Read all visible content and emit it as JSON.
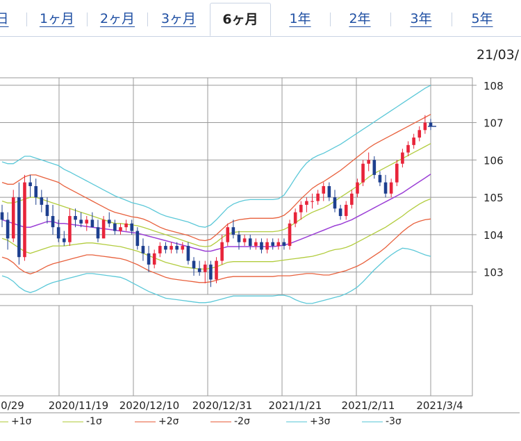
{
  "tabs": [
    {
      "label": "日",
      "active": false
    },
    {
      "label": "1ヶ月",
      "active": false
    },
    {
      "label": "2ヶ月",
      "active": false
    },
    {
      "label": "3ヶ月",
      "active": false
    },
    {
      "label": "6ヶ月",
      "active": true
    },
    {
      "label": "1年",
      "active": false
    },
    {
      "label": "2年",
      "active": false
    },
    {
      "label": "3年",
      "active": false
    },
    {
      "label": "5年",
      "active": false
    }
  ],
  "date_stamp": "21/03/",
  "legend": [
    {
      "label": "+1σ",
      "color": "#b2cc3e"
    },
    {
      "label": "-1σ",
      "color": "#b2cc3e"
    },
    {
      "label": "+2σ",
      "color": "#e8603c"
    },
    {
      "label": "-2σ",
      "color": "#e8603c"
    },
    {
      "label": "+3σ",
      "color": "#5bc8d8"
    },
    {
      "label": "-3σ",
      "color": "#5bc8d8"
    }
  ],
  "colors": {
    "up": "#e8243a",
    "down": "#1d3f8f",
    "ma": "#9b3fd6",
    "grid": "#999999"
  },
  "chart_data": {
    "type": "candlestick",
    "x_tick_labels": [
      "0/29",
      "2020/11/19",
      "2020/12/10",
      "2020/12/31",
      "2021/1/21",
      "2021/2/11",
      "2021/3/4"
    ],
    "y_ticks": [
      103,
      104,
      105,
      106,
      107,
      108
    ],
    "ylim": [
      102.4,
      108.2
    ],
    "ohlc": [
      [
        104.6,
        104.8,
        104.2,
        104.4
      ],
      [
        104.4,
        104.6,
        103.6,
        103.9
      ],
      [
        103.9,
        105.2,
        103.8,
        105.0
      ],
      [
        105.0,
        105.4,
        103.2,
        103.4
      ],
      [
        103.4,
        105.6,
        103.3,
        105.4
      ],
      [
        105.4,
        105.6,
        105.0,
        105.3
      ],
      [
        105.3,
        105.5,
        104.8,
        105.0
      ],
      [
        105.0,
        105.2,
        104.6,
        104.8
      ],
      [
        104.8,
        105.0,
        104.3,
        104.5
      ],
      [
        104.5,
        104.8,
        104.0,
        104.2
      ],
      [
        104.2,
        104.4,
        103.8,
        103.9
      ],
      [
        103.9,
        104.1,
        103.7,
        103.8
      ],
      [
        103.8,
        104.7,
        103.7,
        104.5
      ],
      [
        104.5,
        104.7,
        104.2,
        104.4
      ],
      [
        104.4,
        104.6,
        104.2,
        104.3
      ],
      [
        104.3,
        104.5,
        104.1,
        104.4
      ],
      [
        104.4,
        104.6,
        104.2,
        104.2
      ],
      [
        104.2,
        104.4,
        103.8,
        103.9
      ],
      [
        103.9,
        104.5,
        103.9,
        104.4
      ],
      [
        104.4,
        104.6,
        104.2,
        104.3
      ],
      [
        104.3,
        104.4,
        104.0,
        104.1
      ],
      [
        104.1,
        104.3,
        104.0,
        104.2
      ],
      [
        104.2,
        104.4,
        104.1,
        104.3
      ],
      [
        104.3,
        104.4,
        104.0,
        104.1
      ],
      [
        104.1,
        104.2,
        103.6,
        103.7
      ],
      [
        103.7,
        103.9,
        103.3,
        103.5
      ],
      [
        103.5,
        103.7,
        103.0,
        103.2
      ],
      [
        103.2,
        103.6,
        103.1,
        103.5
      ],
      [
        103.5,
        103.8,
        103.4,
        103.7
      ],
      [
        103.7,
        103.8,
        103.5,
        103.6
      ],
      [
        103.6,
        103.8,
        103.5,
        103.7
      ],
      [
        103.7,
        103.8,
        103.5,
        103.6
      ],
      [
        103.6,
        103.8,
        103.5,
        103.7
      ],
      [
        103.7,
        103.8,
        103.2,
        103.3
      ],
      [
        103.3,
        103.4,
        102.9,
        103.1
      ],
      [
        103.1,
        103.3,
        102.9,
        103.0
      ],
      [
        103.0,
        103.3,
        102.7,
        103.2
      ],
      [
        103.2,
        103.3,
        102.6,
        102.8
      ],
      [
        102.8,
        103.4,
        102.7,
        103.3
      ],
      [
        103.3,
        104.0,
        103.2,
        103.8
      ],
      [
        103.8,
        104.3,
        103.7,
        104.2
      ],
      [
        104.2,
        104.4,
        103.9,
        104.0
      ],
      [
        104.0,
        104.1,
        103.6,
        103.8
      ],
      [
        103.8,
        104.0,
        103.7,
        103.9
      ],
      [
        103.9,
        104.0,
        103.6,
        103.7
      ],
      [
        103.7,
        103.9,
        103.6,
        103.8
      ],
      [
        103.8,
        103.9,
        103.5,
        103.6
      ],
      [
        103.6,
        103.9,
        103.5,
        103.8
      ],
      [
        103.8,
        103.9,
        103.6,
        103.7
      ],
      [
        103.7,
        103.9,
        103.6,
        103.8
      ],
      [
        103.8,
        103.9,
        103.6,
        103.7
      ],
      [
        103.7,
        104.4,
        103.6,
        104.3
      ],
      [
        104.3,
        104.7,
        104.2,
        104.6
      ],
      [
        104.6,
        104.9,
        104.4,
        104.8
      ],
      [
        104.8,
        105.0,
        104.6,
        104.9
      ],
      [
        104.9,
        105.1,
        104.7,
        104.9
      ],
      [
        104.9,
        105.2,
        104.8,
        105.1
      ],
      [
        105.1,
        105.4,
        104.9,
        105.3
      ],
      [
        105.3,
        105.4,
        104.9,
        105.0
      ],
      [
        105.0,
        105.2,
        104.6,
        104.7
      ],
      [
        104.7,
        104.8,
        104.4,
        104.5
      ],
      [
        104.5,
        104.9,
        104.4,
        104.8
      ],
      [
        104.8,
        105.2,
        104.7,
        105.1
      ],
      [
        105.1,
        105.5,
        105.0,
        105.4
      ],
      [
        105.4,
        106.0,
        105.3,
        105.9
      ],
      [
        105.9,
        106.2,
        105.7,
        106.0
      ],
      [
        106.0,
        106.1,
        105.5,
        105.6
      ],
      [
        105.6,
        105.7,
        105.3,
        105.4
      ],
      [
        105.4,
        105.6,
        105.0,
        105.1
      ],
      [
        105.1,
        105.5,
        105.0,
        105.4
      ],
      [
        105.4,
        106.0,
        105.3,
        105.9
      ],
      [
        105.9,
        106.3,
        105.8,
        106.2
      ],
      [
        106.2,
        106.5,
        106.1,
        106.4
      ],
      [
        106.4,
        106.7,
        106.3,
        106.6
      ],
      [
        106.6,
        106.9,
        106.5,
        106.8
      ],
      [
        106.8,
        107.2,
        106.7,
        107.0
      ],
      [
        107.0,
        107.1,
        106.8,
        106.9
      ]
    ],
    "ma": [
      104.4,
      104.35,
      104.3,
      104.25,
      104.2,
      104.2,
      104.25,
      104.3,
      104.35,
      104.35,
      104.3,
      104.3,
      104.28,
      104.26,
      104.24,
      104.22,
      104.2,
      104.18,
      104.16,
      104.14,
      104.12,
      104.1,
      104.08,
      104.06,
      104.04,
      104.0,
      103.96,
      103.92,
      103.88,
      103.84,
      103.8,
      103.76,
      103.72,
      103.68,
      103.64,
      103.6,
      103.56,
      103.56,
      103.6,
      103.64,
      103.68,
      103.68,
      103.68,
      103.68,
      103.68,
      103.68,
      103.68,
      103.68,
      103.68,
      103.7,
      103.72,
      103.76,
      103.82,
      103.88,
      103.94,
      104.0,
      104.06,
      104.12,
      104.18,
      104.24,
      104.28,
      104.34,
      104.4,
      104.48,
      104.56,
      104.64,
      104.72,
      104.8,
      104.88,
      104.96,
      105.04,
      105.12,
      105.22,
      105.32,
      105.42,
      105.52,
      105.62
    ],
    "bands": {
      "plus1": [
        104.9,
        104.85,
        104.85,
        104.9,
        104.95,
        105.0,
        105.0,
        104.95,
        104.9,
        104.85,
        104.8,
        104.75,
        104.7,
        104.65,
        104.6,
        104.55,
        104.5,
        104.45,
        104.4,
        104.35,
        104.3,
        104.3,
        104.28,
        104.26,
        104.24,
        104.2,
        104.15,
        104.1,
        104.05,
        104.0,
        103.95,
        103.9,
        103.85,
        103.8,
        103.75,
        103.7,
        103.68,
        103.7,
        103.8,
        103.92,
        104.02,
        104.06,
        104.08,
        104.08,
        104.08,
        104.08,
        104.08,
        104.08,
        104.08,
        104.1,
        104.14,
        104.22,
        104.32,
        104.42,
        104.52,
        104.6,
        104.66,
        104.72,
        104.8,
        104.9,
        105.0,
        105.1,
        105.2,
        105.3,
        105.42,
        105.54,
        105.64,
        105.72,
        105.8,
        105.88,
        105.96,
        106.04,
        106.12,
        106.2,
        106.28,
        106.36,
        106.44
      ],
      "minus1": [
        103.9,
        103.85,
        103.75,
        103.65,
        103.55,
        103.5,
        103.55,
        103.6,
        103.65,
        103.7,
        103.7,
        103.7,
        103.72,
        103.74,
        103.76,
        103.78,
        103.78,
        103.76,
        103.74,
        103.72,
        103.7,
        103.68,
        103.64,
        103.6,
        103.56,
        103.5,
        103.44,
        103.38,
        103.32,
        103.26,
        103.22,
        103.18,
        103.14,
        103.12,
        103.1,
        103.08,
        103.08,
        103.1,
        103.14,
        103.2,
        103.26,
        103.28,
        103.28,
        103.28,
        103.28,
        103.28,
        103.28,
        103.28,
        103.28,
        103.3,
        103.32,
        103.34,
        103.36,
        103.38,
        103.4,
        103.42,
        103.46,
        103.5,
        103.56,
        103.6,
        103.62,
        103.66,
        103.72,
        103.8,
        103.88,
        103.96,
        104.04,
        104.12,
        104.2,
        104.3,
        104.4,
        104.5,
        104.62,
        104.72,
        104.82,
        104.9,
        104.96
      ],
      "plus2": [
        105.4,
        105.35,
        105.35,
        105.45,
        105.55,
        105.6,
        105.6,
        105.55,
        105.5,
        105.45,
        105.4,
        105.3,
        105.22,
        105.14,
        105.06,
        104.98,
        104.9,
        104.82,
        104.74,
        104.66,
        104.6,
        104.56,
        104.52,
        104.48,
        104.46,
        104.42,
        104.36,
        104.28,
        104.2,
        104.14,
        104.1,
        104.06,
        104.02,
        103.98,
        103.92,
        103.86,
        103.84,
        103.88,
        104.0,
        104.14,
        104.28,
        104.36,
        104.4,
        104.42,
        104.44,
        104.44,
        104.44,
        104.44,
        104.44,
        104.46,
        104.52,
        104.64,
        104.8,
        104.96,
        105.1,
        105.24,
        105.34,
        105.42,
        105.52,
        105.62,
        105.72,
        105.84,
        105.96,
        106.08,
        106.2,
        106.32,
        106.42,
        106.5,
        106.58,
        106.66,
        106.74,
        106.82,
        106.9,
        106.98,
        107.06,
        107.14,
        107.22
      ],
      "minus2": [
        103.4,
        103.35,
        103.25,
        103.1,
        103.0,
        102.95,
        103.0,
        103.08,
        103.16,
        103.22,
        103.26,
        103.3,
        103.34,
        103.38,
        103.42,
        103.46,
        103.46,
        103.44,
        103.42,
        103.4,
        103.38,
        103.36,
        103.32,
        103.26,
        103.2,
        103.12,
        103.04,
        102.98,
        102.92,
        102.86,
        102.82,
        102.8,
        102.78,
        102.76,
        102.74,
        102.72,
        102.72,
        102.74,
        102.78,
        102.82,
        102.86,
        102.88,
        102.88,
        102.88,
        102.88,
        102.88,
        102.88,
        102.88,
        102.88,
        102.9,
        102.9,
        102.9,
        102.92,
        102.94,
        102.96,
        102.96,
        102.94,
        102.92,
        102.92,
        102.96,
        103.0,
        103.04,
        103.1,
        103.16,
        103.24,
        103.34,
        103.44,
        103.54,
        103.66,
        103.8,
        103.94,
        104.08,
        104.2,
        104.3,
        104.36,
        104.4,
        104.42
      ],
      "plus3": [
        105.95,
        105.9,
        105.9,
        106.0,
        106.1,
        106.1,
        106.05,
        106.0,
        105.95,
        105.9,
        105.85,
        105.75,
        105.68,
        105.6,
        105.52,
        105.44,
        105.36,
        105.28,
        105.2,
        105.12,
        105.04,
        104.98,
        104.92,
        104.86,
        104.82,
        104.78,
        104.72,
        104.64,
        104.56,
        104.5,
        104.46,
        104.42,
        104.38,
        104.34,
        104.28,
        104.22,
        104.2,
        104.26,
        104.4,
        104.56,
        104.72,
        104.82,
        104.88,
        104.92,
        104.94,
        104.94,
        104.94,
        104.94,
        104.94,
        104.96,
        105.06,
        105.28,
        105.52,
        105.74,
        105.92,
        106.04,
        106.12,
        106.18,
        106.26,
        106.34,
        106.42,
        106.52,
        106.62,
        106.72,
        106.82,
        106.92,
        107.02,
        107.12,
        107.22,
        107.32,
        107.42,
        107.52,
        107.62,
        107.72,
        107.82,
        107.92,
        108.0
      ],
      "minus3": [
        102.9,
        102.85,
        102.75,
        102.6,
        102.5,
        102.45,
        102.5,
        102.58,
        102.66,
        102.72,
        102.76,
        102.8,
        102.84,
        102.88,
        102.92,
        102.96,
        102.96,
        102.94,
        102.92,
        102.9,
        102.88,
        102.86,
        102.8,
        102.72,
        102.64,
        102.56,
        102.48,
        102.42,
        102.36,
        102.3,
        102.28,
        102.26,
        102.24,
        102.22,
        102.2,
        102.18,
        102.18,
        102.2,
        102.24,
        102.28,
        102.32,
        102.36,
        102.36,
        102.36,
        102.36,
        102.36,
        102.36,
        102.36,
        102.36,
        102.38,
        102.38,
        102.34,
        102.26,
        102.2,
        102.16,
        102.16,
        102.2,
        102.24,
        102.28,
        102.32,
        102.36,
        102.42,
        102.5,
        102.6,
        102.74,
        102.9,
        103.06,
        103.2,
        103.34,
        103.46,
        103.56,
        103.64,
        103.62,
        103.58,
        103.52,
        103.46,
        103.42
      ]
    }
  }
}
